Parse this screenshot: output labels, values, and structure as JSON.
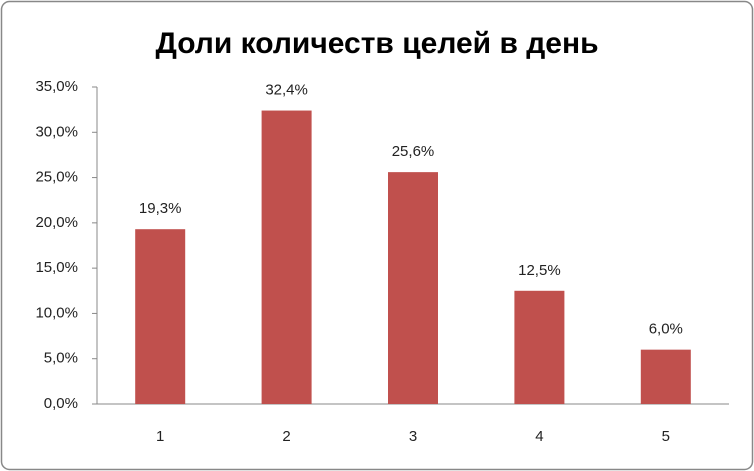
{
  "chart_data": {
    "type": "bar",
    "title": "Доли количеств целей в день",
    "categories": [
      "1",
      "2",
      "3",
      "4",
      "5"
    ],
    "values": [
      19.3,
      32.4,
      25.6,
      12.5,
      6.0
    ],
    "value_labels": [
      "19,3%",
      "32,4%",
      "25,6%",
      "12,5%",
      "6,0%"
    ],
    "color": "#c0504d",
    "ylim": [
      0,
      35
    ],
    "yticks": [
      {
        "value": 0,
        "label": "0,0%"
      },
      {
        "value": 5,
        "label": "5,0%"
      },
      {
        "value": 10,
        "label": "10,0%"
      },
      {
        "value": 15,
        "label": "15,0%"
      },
      {
        "value": 20,
        "label": "20,0%"
      },
      {
        "value": 25,
        "label": "25,0%"
      },
      {
        "value": 30,
        "label": "30,0%"
      },
      {
        "value": 35,
        "label": "35,0%"
      }
    ],
    "grid": false
  }
}
